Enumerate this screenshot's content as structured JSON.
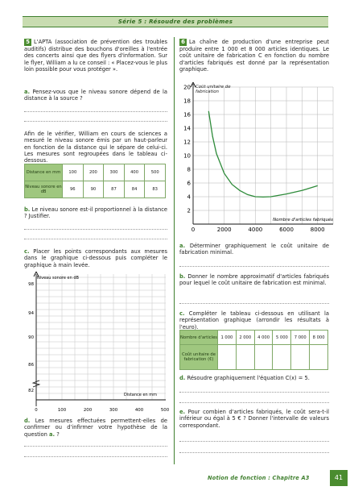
{
  "banner": "Série 5 : Résoudre des problèmes",
  "ex5": {
    "number": "5",
    "intro": "L'APTA (association de prévention des troubles auditifs) distribue des bouchons d'oreilles à l'entrée des concerts ainsi que des flyers d'information. Sur le flyer, William a lu ce conseil : « Placez-vous le plus loin possible pour vous protéger ».",
    "qa_label": "a.",
    "qa": "Pensez-vous que le niveau sonore dépend de la distance à la source ?",
    "para": "Afin de le vérifier, William en cours de sciences a mesuré le niveau sonore émis par un haut-parleur en fonction de la distance qui le sépare de celui-ci. Les mesures sont regroupées dans le tableau ci-dessous.",
    "table": {
      "row1_header": "Distance en mm",
      "row2_header": "Niveau sonore en dB",
      "distances": [
        "100",
        "200",
        "300",
        "400",
        "500"
      ],
      "levels": [
        "96",
        "90",
        "87",
        "84",
        "83"
      ]
    },
    "qb_label": "b.",
    "qb": "Le niveau sonore est-il proportionnel à la distance ? Justifier.",
    "qc_label": "c.",
    "qc": "Placer les points correspondants aux mesures dans le graphique ci-dessous puis compléter le graphique à main levée.",
    "graph": {
      "ylabel": "Niveau sonore en dB",
      "xlabel": "Distance en mm",
      "yticks": [
        "98",
        "94",
        "90",
        "86",
        "82"
      ],
      "xticks": [
        "0",
        "100",
        "200",
        "300",
        "400",
        "500"
      ]
    },
    "qd_label": "d.",
    "qd_part1": "Les mesures effectuées permettent-elles de confirmer ou d'infirmer votre hypothèse de la question",
    "qd_ref": "a.",
    "qd_end": "?"
  },
  "ex6": {
    "number": "6",
    "intro": "La chaîne de production d'une entreprise peut produire entre 1 000 et 8 000 articles identiques. Le coût unitaire de fabrication C en fonction du nombre d'articles fabriqués est donné par la représentation graphique.",
    "qa_label": "a.",
    "qa": "Déterminer graphiquement le coût unitaire de fabrication minimal.",
    "qb_label": "b.",
    "qb": "Donner le nombre approximatif d'articles fabriqués pour lequel le coût unitaire de fabrication est minimal.",
    "qc_label": "c.",
    "qc": "Compléter le tableau ci-dessous en utilisant la représentation graphique (arrondir les résultats à l'euro).",
    "table": {
      "row1_header": "Nombre d'articles",
      "row2_header": "Coût unitaire de fabrication (€)",
      "counts": [
        "1 000",
        "2 000",
        "4 000",
        "5 000",
        "7 000",
        "8 000"
      ]
    },
    "qd_label": "d.",
    "qd": "Résoudre graphiquement l'équation C(x) = 5.",
    "qe_label": "e.",
    "qe": "Pour combien d'articles fabriqués, le coût sera-t-il inférieur ou égal à 5 € ? Donner l'intervalle de valeurs correspondant."
  },
  "chart_data": {
    "type": "line",
    "title": "",
    "ylabel": "Coût unitaire de fabrication",
    "xlabel": "Nombre d'articles fabriqués",
    "xlim": [
      0,
      9000
    ],
    "ylim": [
      0,
      20
    ],
    "x_tick_labels": [
      "0",
      "2000",
      "4000",
      "6000",
      "8000"
    ],
    "y_tick_labels": [
      "2",
      "4",
      "6",
      "8",
      "10",
      "12",
      "14",
      "16",
      "18",
      "20"
    ],
    "grid": true,
    "x": [
      1000,
      1250,
      1500,
      2000,
      2500,
      3000,
      3500,
      4000,
      4500,
      5000,
      6000,
      7000,
      8000
    ],
    "values": [
      16.5,
      12.8,
      10.3,
      7.4,
      5.8,
      4.9,
      4.3,
      4.0,
      3.95,
      4.0,
      4.4,
      4.9,
      5.6
    ],
    "colors": {
      "curve": "#2e8b3a",
      "grid": "#b5b5b5"
    }
  },
  "footer": {
    "text": "Notion de fonction : Chapitre A3",
    "page": "41"
  }
}
